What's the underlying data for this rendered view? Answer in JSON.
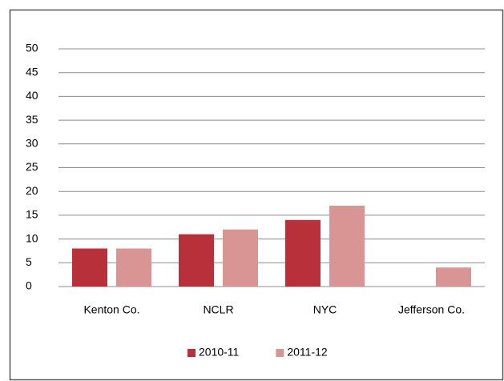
{
  "chart_data": {
    "type": "bar",
    "categories": [
      "Kenton Co.",
      "NCLR",
      "NYC",
      "Jefferson Co."
    ],
    "series": [
      {
        "name": "2010-11",
        "color": "#b83039",
        "values": [
          8,
          11,
          14,
          null
        ]
      },
      {
        "name": "2011-12",
        "color": "#d99594",
        "values": [
          8,
          12,
          17,
          4
        ]
      }
    ],
    "ylim": [
      0,
      50
    ],
    "yticks": [
      0,
      5,
      10,
      15,
      20,
      25,
      30,
      35,
      40,
      45,
      50
    ],
    "grid": true,
    "legend": "bottom"
  }
}
